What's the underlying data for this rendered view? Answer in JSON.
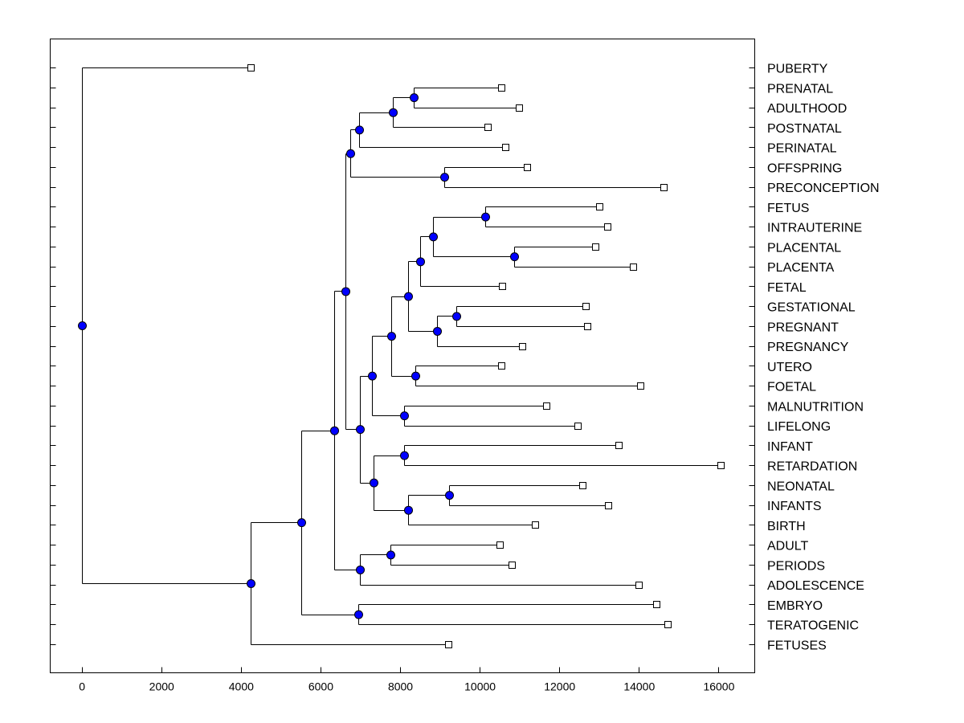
{
  "chart_data": {
    "type": "dendrogram",
    "title": "",
    "xlabel": "",
    "ylabel": "",
    "xlim": [
      -800,
      16900
    ],
    "xticks": [
      0,
      2000,
      4000,
      6000,
      8000,
      10000,
      12000,
      14000,
      16000
    ],
    "node_color": "#0000ff",
    "leaf_marker_color": "#ffffff",
    "leaves": [
      {
        "name": "PUBERTY",
        "value": 4250
      },
      {
        "name": "PRENATAL",
        "value": 10550
      },
      {
        "name": "ADULTHOOD",
        "value": 10980
      },
      {
        "name": "POSTNATAL",
        "value": 10200
      },
      {
        "name": "PERINATAL",
        "value": 10640
      },
      {
        "name": "OFFSPRING",
        "value": 11180
      },
      {
        "name": "PRECONCEPTION",
        "value": 14620
      },
      {
        "name": "FETUS",
        "value": 13000
      },
      {
        "name": "INTRAUTERINE",
        "value": 13200
      },
      {
        "name": "PLACENTAL",
        "value": 12900
      },
      {
        "name": "PLACENTA",
        "value": 13850
      },
      {
        "name": "FETAL",
        "value": 10570
      },
      {
        "name": "GESTATIONAL",
        "value": 12660
      },
      {
        "name": "PREGNANT",
        "value": 12700
      },
      {
        "name": "PREGNANCY",
        "value": 11060
      },
      {
        "name": "UTERO",
        "value": 10550
      },
      {
        "name": "FOETAL",
        "value": 14030
      },
      {
        "name": "MALNUTRITION",
        "value": 11680
      },
      {
        "name": "LIFELONG",
        "value": 12450
      },
      {
        "name": "INFANT",
        "value": 13480
      },
      {
        "name": "RETARDATION",
        "value": 16050
      },
      {
        "name": "NEONATAL",
        "value": 12580
      },
      {
        "name": "INFANTS",
        "value": 13230
      },
      {
        "name": "BIRTH",
        "value": 11400
      },
      {
        "name": "ADULT",
        "value": 10500
      },
      {
        "name": "PERIODS",
        "value": 10800
      },
      {
        "name": "ADOLESCENCE",
        "value": 14000
      },
      {
        "name": "EMBRYO",
        "value": 14430
      },
      {
        "name": "TERATOGENIC",
        "value": 14730
      },
      {
        "name": "FETUSES",
        "value": 9220
      }
    ],
    "nodes": [
      {
        "id": "n1",
        "value": 8350,
        "children": [
          "PRENATAL",
          "ADULTHOOD"
        ]
      },
      {
        "id": "n2",
        "value": 7820,
        "children": [
          "n1",
          "POSTNATAL"
        ]
      },
      {
        "id": "n3",
        "value": 6980,
        "children": [
          "n2",
          "PERINATAL"
        ]
      },
      {
        "id": "n4",
        "value": 9100,
        "children": [
          "OFFSPRING",
          "PRECONCEPTION"
        ]
      },
      {
        "id": "n5",
        "value": 6750,
        "children": [
          "n3",
          "n4"
        ]
      },
      {
        "id": "n6",
        "value": 10130,
        "children": [
          "FETUS",
          "INTRAUTERINE"
        ]
      },
      {
        "id": "n7",
        "value": 10870,
        "children": [
          "PLACENTAL",
          "PLACENTA"
        ]
      },
      {
        "id": "n8",
        "value": 8830,
        "children": [
          "n6",
          "n7"
        ]
      },
      {
        "id": "n9",
        "value": 8500,
        "children": [
          "n8",
          "FETAL"
        ]
      },
      {
        "id": "n10",
        "value": 9420,
        "children": [
          "GESTATIONAL",
          "PREGNANT"
        ]
      },
      {
        "id": "n11",
        "value": 8930,
        "children": [
          "n10",
          "PREGNANCY"
        ]
      },
      {
        "id": "n12",
        "value": 8200,
        "children": [
          "n9",
          "n11"
        ]
      },
      {
        "id": "n13",
        "value": 8380,
        "children": [
          "UTERO",
          "FOETAL"
        ]
      },
      {
        "id": "n14",
        "value": 7780,
        "children": [
          "n12",
          "n13"
        ]
      },
      {
        "id": "n15",
        "value": 8100,
        "children": [
          "MALNUTRITION",
          "LIFELONG"
        ]
      },
      {
        "id": "n16",
        "value": 7300,
        "children": [
          "n14",
          "n15"
        ]
      },
      {
        "id": "n17",
        "value": 8100,
        "children": [
          "INFANT",
          "RETARDATION"
        ]
      },
      {
        "id": "n18",
        "value": 9230,
        "children": [
          "NEONATAL",
          "INFANTS"
        ]
      },
      {
        "id": "n19",
        "value": 8200,
        "children": [
          "n18",
          "BIRTH"
        ]
      },
      {
        "id": "n20",
        "value": 7330,
        "children": [
          "n17",
          "n19"
        ]
      },
      {
        "id": "n21",
        "value": 7000,
        "children": [
          "n16",
          "n20"
        ]
      },
      {
        "id": "n22",
        "value": 6620,
        "children": [
          "n5",
          "n21"
        ]
      },
      {
        "id": "n23",
        "value": 7750,
        "children": [
          "ADULT",
          "PERIODS"
        ]
      },
      {
        "id": "n24",
        "value": 6990,
        "children": [
          "n23",
          "ADOLESCENCE"
        ]
      },
      {
        "id": "n25",
        "value": 6350,
        "children": [
          "n22",
          "n24"
        ]
      },
      {
        "id": "n26",
        "value": 6950,
        "children": [
          "EMBRYO",
          "TERATOGENIC"
        ]
      },
      {
        "id": "n27",
        "value": 5520,
        "children": [
          "n25",
          "n26"
        ]
      },
      {
        "id": "n28",
        "value": 4250,
        "children": [
          "n27",
          "FETUSES"
        ]
      },
      {
        "id": "root",
        "value": 0,
        "children": [
          "PUBERTY",
          "n28"
        ]
      }
    ]
  }
}
